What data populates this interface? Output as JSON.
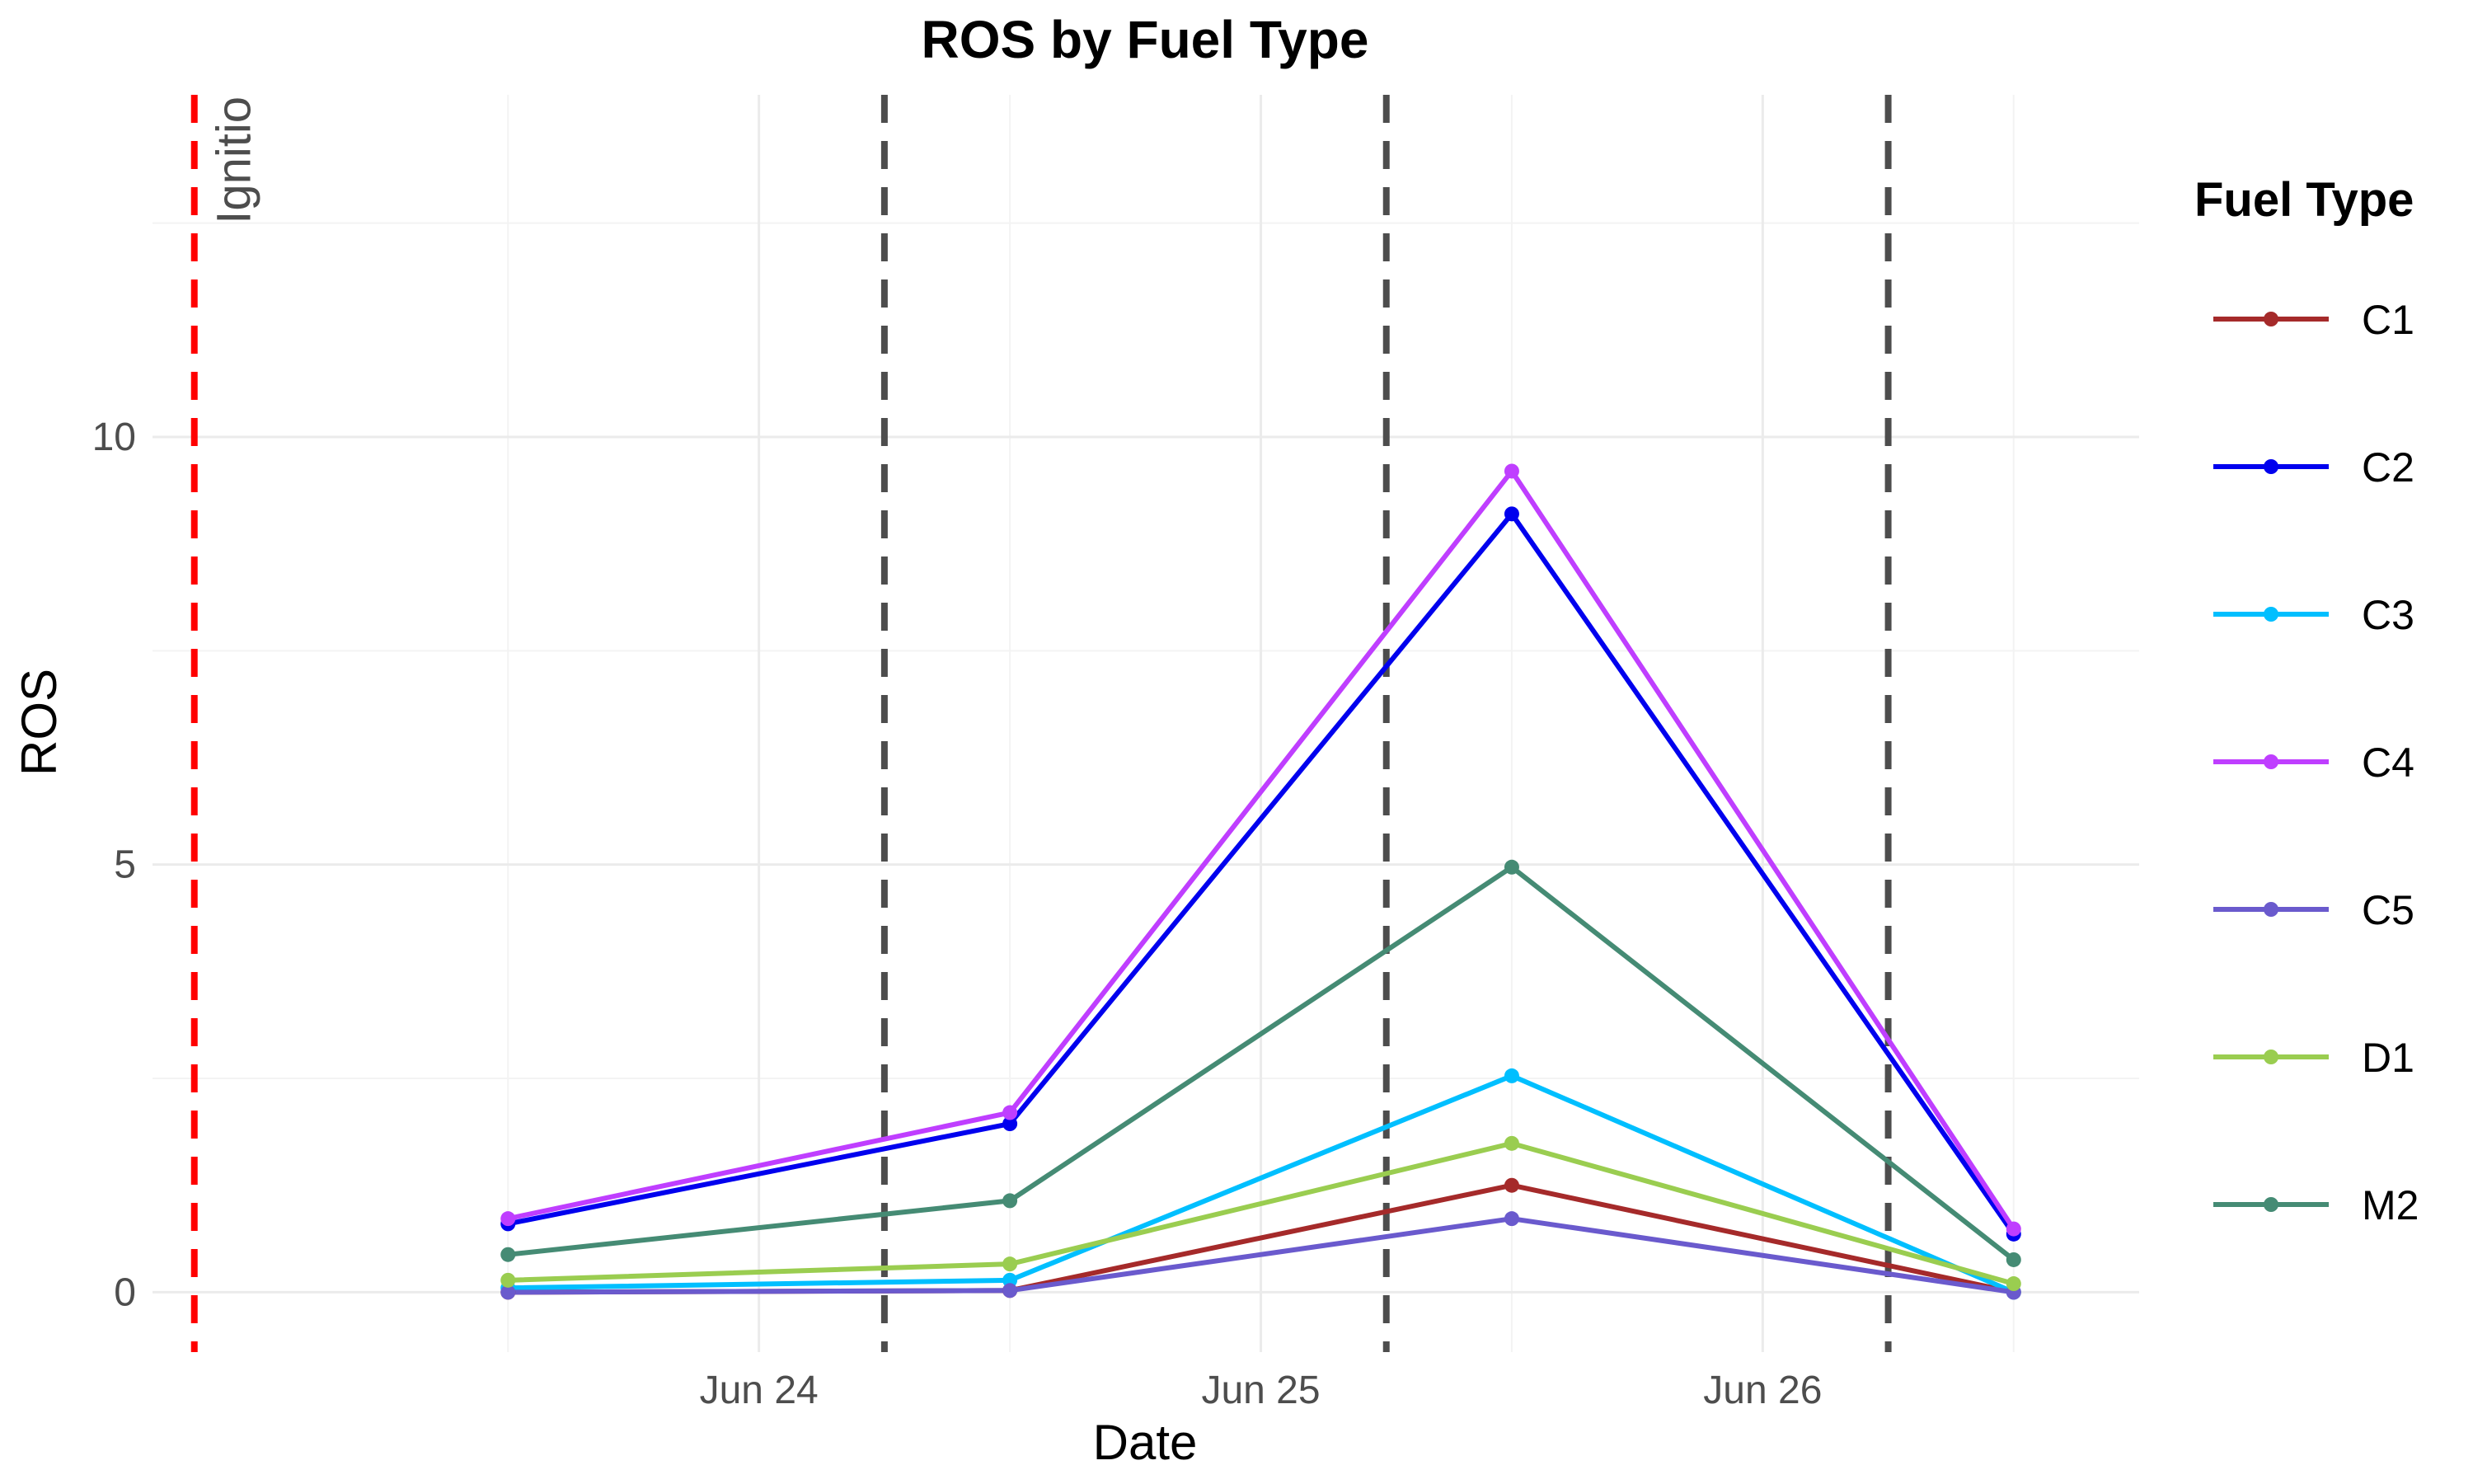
{
  "chart_data": {
    "type": "line",
    "title": "ROS by Fuel Type",
    "xlabel": "Date",
    "ylabel": "ROS",
    "x": [
      "2024-06-23T12:00",
      "2024-06-24T12:00",
      "2024-06-25T12:00",
      "2024-06-26T12:00"
    ],
    "x_tick_labels": [
      "Jun 24",
      "Jun 25",
      "Jun 26"
    ],
    "y_ticks": [
      0,
      5,
      10
    ],
    "ylim": [
      -0.7,
      14.0
    ],
    "grid": true,
    "legend_title": "Fuel Type",
    "legend_position": "right",
    "series": [
      {
        "name": "C1",
        "color": "#a52a2a",
        "values": [
          0.0,
          0.02,
          1.25,
          0.0
        ]
      },
      {
        "name": "C2",
        "color": "#0000ee",
        "values": [
          0.8,
          1.97,
          9.1,
          0.68
        ]
      },
      {
        "name": "C3",
        "color": "#00bfff",
        "values": [
          0.05,
          0.14,
          2.53,
          0.0
        ]
      },
      {
        "name": "C4",
        "color": "#bf3eff",
        "values": [
          0.86,
          2.1,
          9.6,
          0.74
        ]
      },
      {
        "name": "C5",
        "color": "#6a5acd",
        "values": [
          0.0,
          0.02,
          0.86,
          0.0
        ]
      },
      {
        "name": "D1",
        "color": "#9acd50",
        "values": [
          0.14,
          0.33,
          1.74,
          0.1
        ]
      },
      {
        "name": "M2",
        "color": "#458b74",
        "values": [
          0.44,
          1.07,
          4.97,
          0.38
        ]
      }
    ],
    "reference_lines": [
      {
        "x": "2024-06-22T21:00",
        "color": "#ff0000",
        "label": "Ignitio"
      },
      {
        "x": "2024-06-24T06:00",
        "color": "#4d4d4d"
      },
      {
        "x": "2024-06-25T06:00",
        "color": "#4d4d4d"
      },
      {
        "x": "2024-06-26T06:00",
        "color": "#4d4d4d"
      }
    ]
  }
}
